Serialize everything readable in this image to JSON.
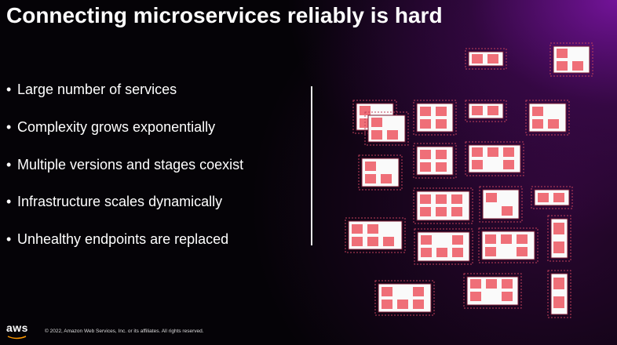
{
  "title": "Connecting microservices reliably is hard",
  "bullets": [
    "Large number of services",
    "Complexity grows exponentially",
    "Multiple versions and stages coexist",
    "Infrastructure scales dynamically",
    "Unhealthy endpoints are replaced"
  ],
  "footer": {
    "logo": "aws",
    "copyright": "© 2022, Amazon Web Services, Inc. or its affiliates. All rights reserved."
  }
}
